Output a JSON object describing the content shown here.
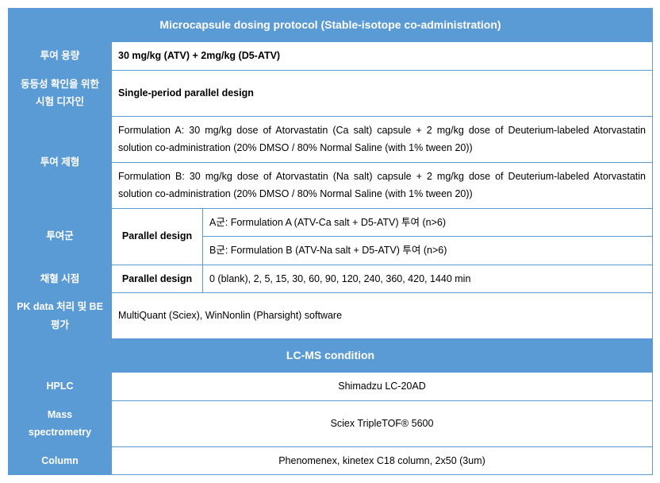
{
  "header1": "Microcapsule dosing protocol (Stable-isotope co-administration)",
  "rows": {
    "dose_label": "투여 용량",
    "dose_value": "30 mg/kg (ATV)  + 2mg/kg (D5-ATV)",
    "design_label": "동등성 확인을 위한 시험 디자인",
    "design_value": "Single-period parallel design",
    "formulation_label": "투여 제형",
    "formulation_a": "Formulation A: 30 mg/kg dose of Atorvastatin (Ca salt) capsule + 2 mg/kg dose of Deuterium-labeled Atorvastatin solution co-administration (20% DMSO / 80% Normal Saline (with 1% tween 20))",
    "formulation_b": "Formulation B: 30 mg/kg dose of Atorvastatin (Na salt) capsule + 2 mg/kg dose of Deuterium-labeled Atorvastatin solution co-administration (20% DMSO / 80% Normal Saline (with 1% tween 20))",
    "group_label": "투여군",
    "parallel_label": "Parallel design",
    "group_a": "A군: Formulation A (ATV-Ca salt + D5-ATV) 투여 (n>6)",
    "group_b": "B군: Formulation B (ATV-Na salt + D5-ATV) 투여 (n>6)",
    "sampling_label": "채혈 시점",
    "sampling_sub": "Parallel design",
    "sampling_value": "0 (blank),  2, 5, 15, 30, 60, 90, 120, 240, 360, 420, 1440 min",
    "pk_label": "PK data 처리 및 BE 평가",
    "pk_value": "MultiQuant (Sciex), WinNonlin (Pharsight) software"
  },
  "header2": "LC-MS condition",
  "lcms": {
    "hplc_label": "HPLC",
    "hplc_value": "Shimadzu LC-20AD",
    "ms_label": "Mass spectrometry",
    "ms_value": "Sciex TripleTOF® 5600",
    "col_label": "Column",
    "col_value": "Phenomenex, kinetex C18 column, 2x50 (3um)"
  }
}
